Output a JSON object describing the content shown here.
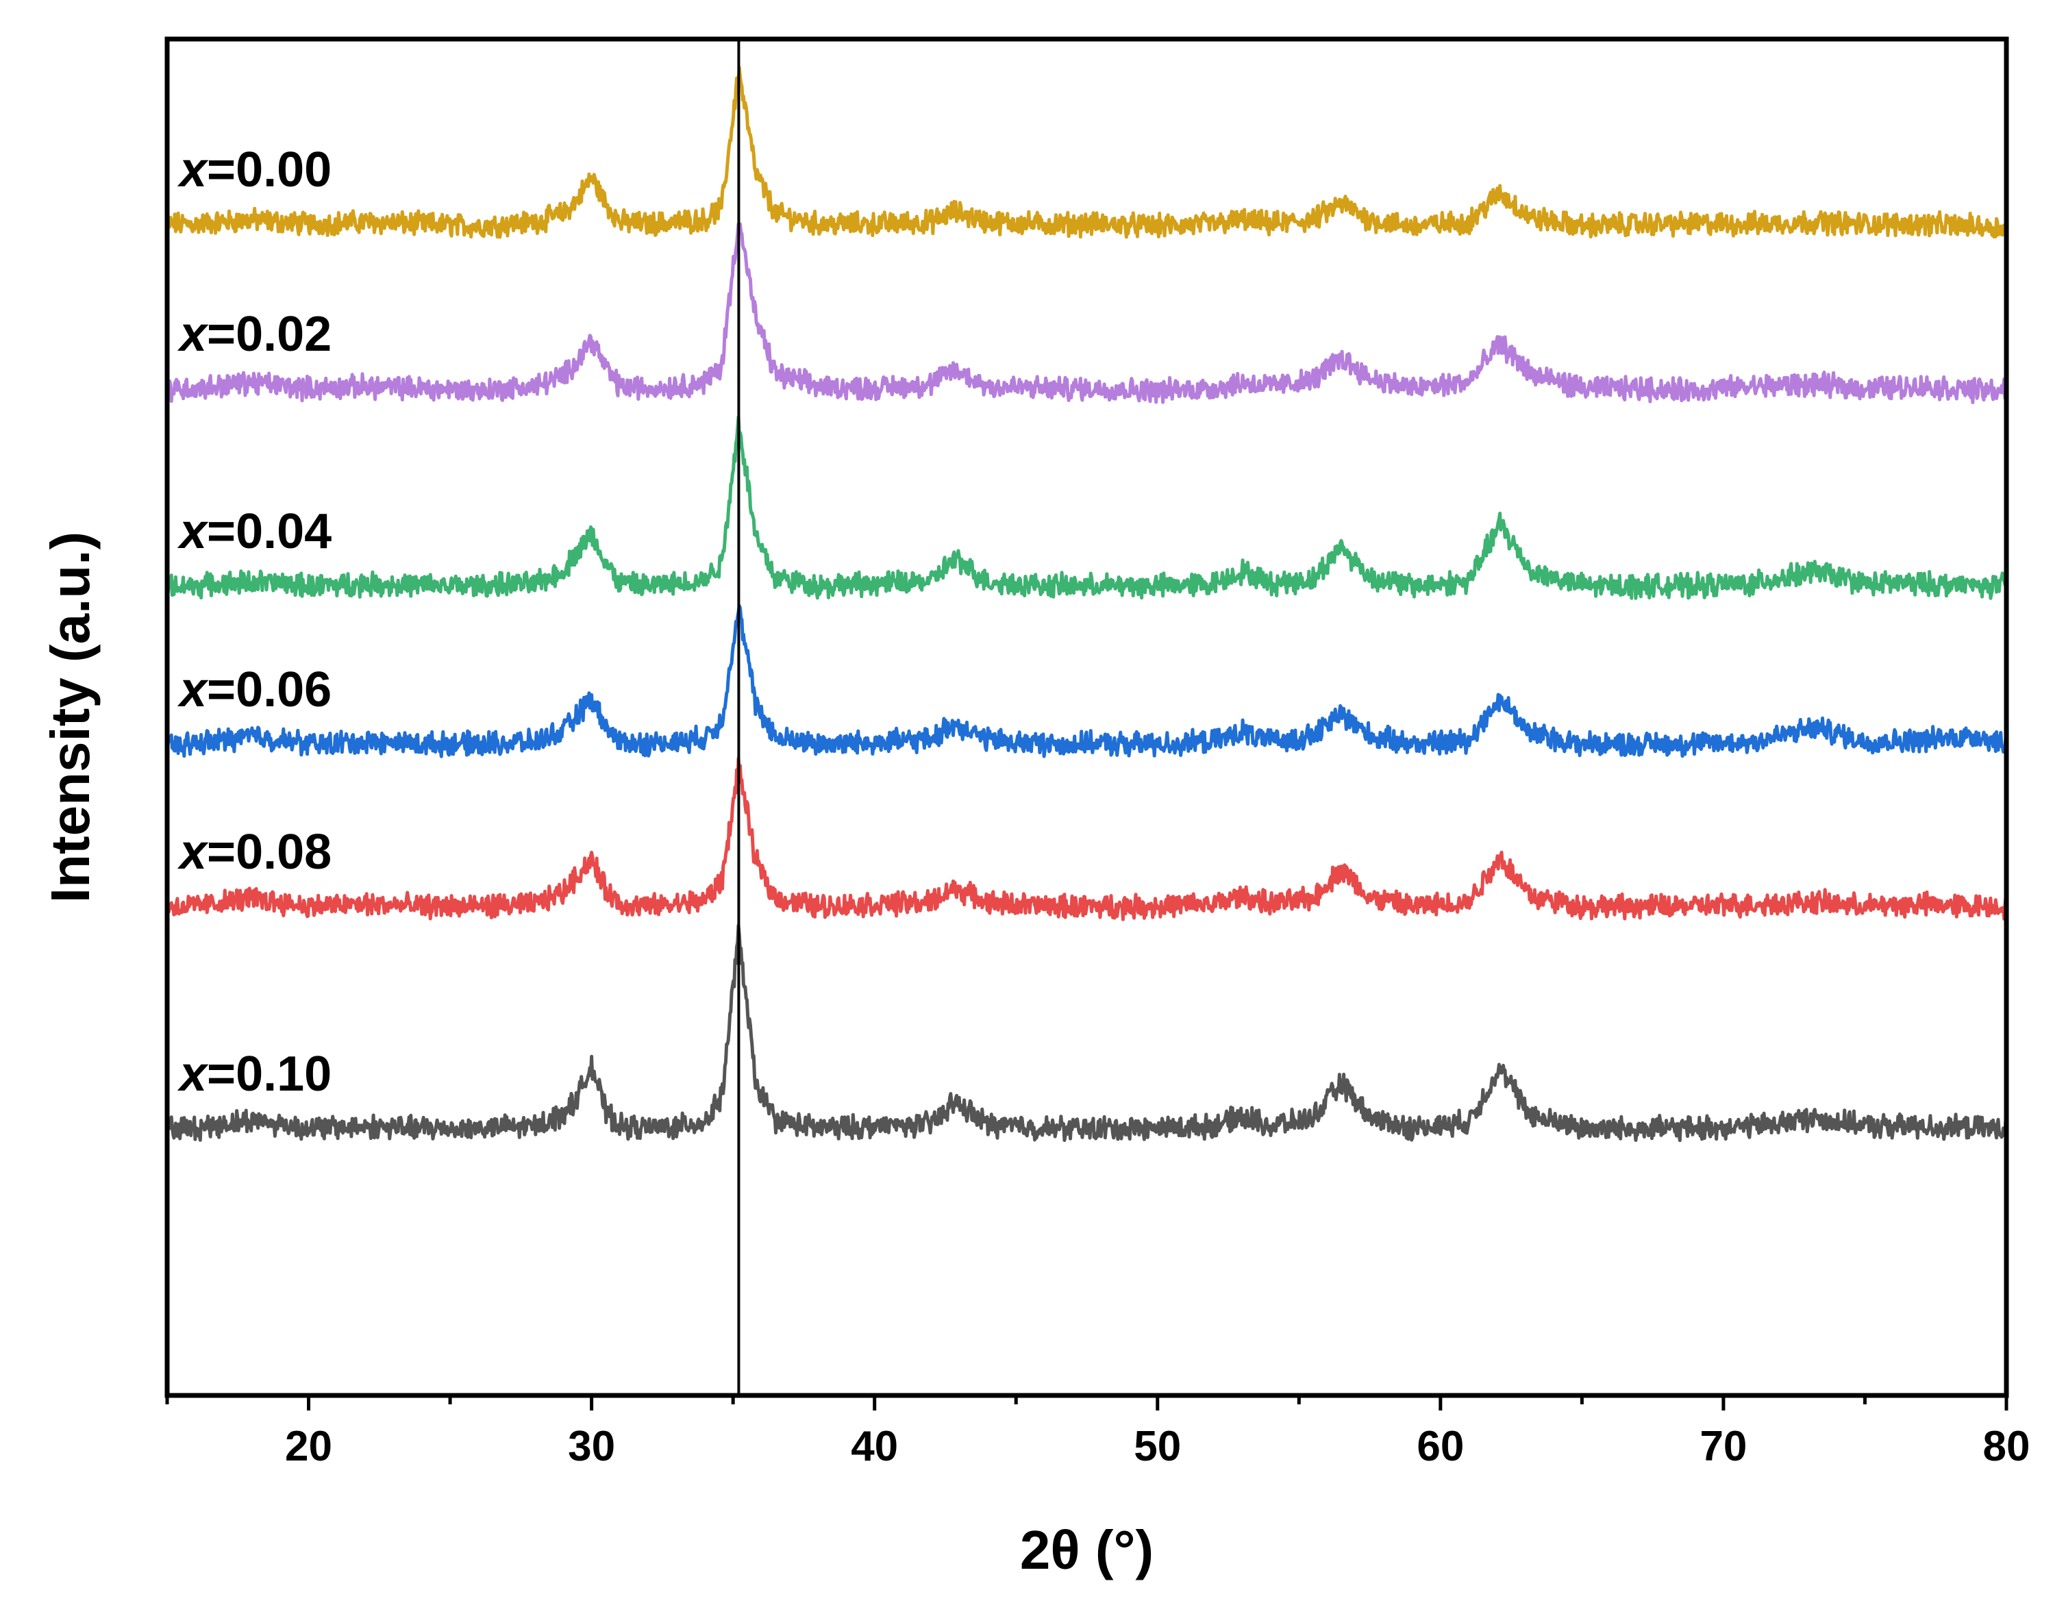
{
  "chart_data": {
    "type": "line",
    "title": "",
    "xlabel": "2θ (°)",
    "ylabel": "Intensity (a.u.)",
    "xlim": [
      15,
      80
    ],
    "xticks": [
      20,
      30,
      40,
      50,
      60,
      70,
      80
    ],
    "xtick_labels": [
      "20",
      "30",
      "40",
      "50",
      "60",
      "70",
      "80"
    ],
    "ylim": [
      0,
      6.6
    ],
    "yticks": [],
    "grid": false,
    "legend": "inline-left",
    "reference_line": {
      "x": 35.2,
      "color": "#000000"
    },
    "x": [
      16,
      18,
      20,
      22,
      24,
      26,
      28,
      29,
      29.5,
      30,
      30.5,
      31,
      32,
      33,
      34,
      34.6,
      35.2,
      35.8,
      36.5,
      38,
      40,
      42,
      42.8,
      44,
      46,
      48,
      50,
      52,
      53,
      54,
      55.5,
      56.5,
      57.5,
      59,
      61,
      62.1,
      63.2,
      65,
      67,
      69,
      71,
      73.3,
      75,
      77,
      79,
      80
    ],
    "series": [
      {
        "name": "x=0.00",
        "var": "x",
        "value_text": "=0.00",
        "color": "#D4A017",
        "values": [
          5.7,
          5.72,
          5.7,
          5.71,
          5.7,
          5.69,
          5.71,
          5.75,
          5.82,
          5.93,
          5.8,
          5.71,
          5.7,
          5.71,
          5.72,
          5.78,
          6.45,
          5.95,
          5.75,
          5.7,
          5.7,
          5.71,
          5.76,
          5.71,
          5.7,
          5.7,
          5.69,
          5.7,
          5.72,
          5.7,
          5.72,
          5.8,
          5.72,
          5.69,
          5.71,
          5.85,
          5.73,
          5.69,
          5.7,
          5.7,
          5.7,
          5.71,
          5.7,
          5.7,
          5.69,
          5.68
        ]
      },
      {
        "name": "x=0.02",
        "var": "x",
        "value_text": "=0.02",
        "color": "#B57EDC",
        "values": [
          4.9,
          4.93,
          4.9,
          4.91,
          4.9,
          4.89,
          4.91,
          4.96,
          5.04,
          5.14,
          5.0,
          4.91,
          4.9,
          4.91,
          4.93,
          5.01,
          5.73,
          5.24,
          4.97,
          4.91,
          4.9,
          4.92,
          4.99,
          4.91,
          4.9,
          4.9,
          4.89,
          4.9,
          4.93,
          4.91,
          4.94,
          5.05,
          4.95,
          4.9,
          4.93,
          5.12,
          4.97,
          4.9,
          4.9,
          4.89,
          4.91,
          4.92,
          4.9,
          4.91,
          4.89,
          4.89
        ]
      },
      {
        "name": "x=0.04",
        "var": "x",
        "value_text": "=0.04",
        "color": "#3CB371",
        "values": [
          3.94,
          3.96,
          3.94,
          3.95,
          3.94,
          3.94,
          3.95,
          4.01,
          4.11,
          4.19,
          4.05,
          3.95,
          3.94,
          3.95,
          3.97,
          4.05,
          4.74,
          4.18,
          3.98,
          3.94,
          3.95,
          3.96,
          4.07,
          3.96,
          3.94,
          3.94,
          3.94,
          3.95,
          4.01,
          3.95,
          3.97,
          4.13,
          3.98,
          3.94,
          3.96,
          4.24,
          4.01,
          3.94,
          3.94,
          3.94,
          3.95,
          4.01,
          3.95,
          3.95,
          3.94,
          3.94
        ]
      },
      {
        "name": "x=0.06",
        "var": "x",
        "value_text": "=0.06",
        "color": "#1F6FD6",
        "values": [
          3.17,
          3.21,
          3.17,
          3.18,
          3.17,
          3.17,
          3.18,
          3.23,
          3.31,
          3.39,
          3.25,
          3.18,
          3.17,
          3.18,
          3.2,
          3.28,
          3.83,
          3.36,
          3.2,
          3.17,
          3.18,
          3.19,
          3.27,
          3.19,
          3.17,
          3.17,
          3.17,
          3.18,
          3.23,
          3.18,
          3.21,
          3.32,
          3.21,
          3.17,
          3.19,
          3.39,
          3.22,
          3.17,
          3.17,
          3.17,
          3.18,
          3.25,
          3.18,
          3.19,
          3.21,
          3.17
        ]
      },
      {
        "name": "x=0.08",
        "var": "x",
        "value_text": "=0.08",
        "color": "#E84A4A",
        "values": [
          2.38,
          2.42,
          2.38,
          2.39,
          2.38,
          2.38,
          2.39,
          2.45,
          2.53,
          2.61,
          2.46,
          2.39,
          2.38,
          2.39,
          2.41,
          2.5,
          3.06,
          2.6,
          2.42,
          2.38,
          2.39,
          2.4,
          2.47,
          2.4,
          2.38,
          2.38,
          2.38,
          2.39,
          2.43,
          2.39,
          2.42,
          2.56,
          2.42,
          2.38,
          2.4,
          2.62,
          2.43,
          2.38,
          2.38,
          2.38,
          2.39,
          2.4,
          2.38,
          2.39,
          2.38,
          2.38
        ]
      },
      {
        "name": "x=0.10",
        "var": "x",
        "value_text": "=0.10",
        "color": "#555555",
        "values": [
          1.3,
          1.34,
          1.3,
          1.31,
          1.3,
          1.3,
          1.31,
          1.37,
          1.45,
          1.61,
          1.38,
          1.31,
          1.3,
          1.31,
          1.33,
          1.45,
          2.25,
          1.52,
          1.34,
          1.3,
          1.31,
          1.32,
          1.43,
          1.32,
          1.3,
          1.3,
          1.3,
          1.31,
          1.36,
          1.31,
          1.35,
          1.52,
          1.35,
          1.3,
          1.33,
          1.59,
          1.36,
          1.3,
          1.3,
          1.3,
          1.31,
          1.35,
          1.31,
          1.31,
          1.3,
          1.3
        ]
      }
    ]
  }
}
